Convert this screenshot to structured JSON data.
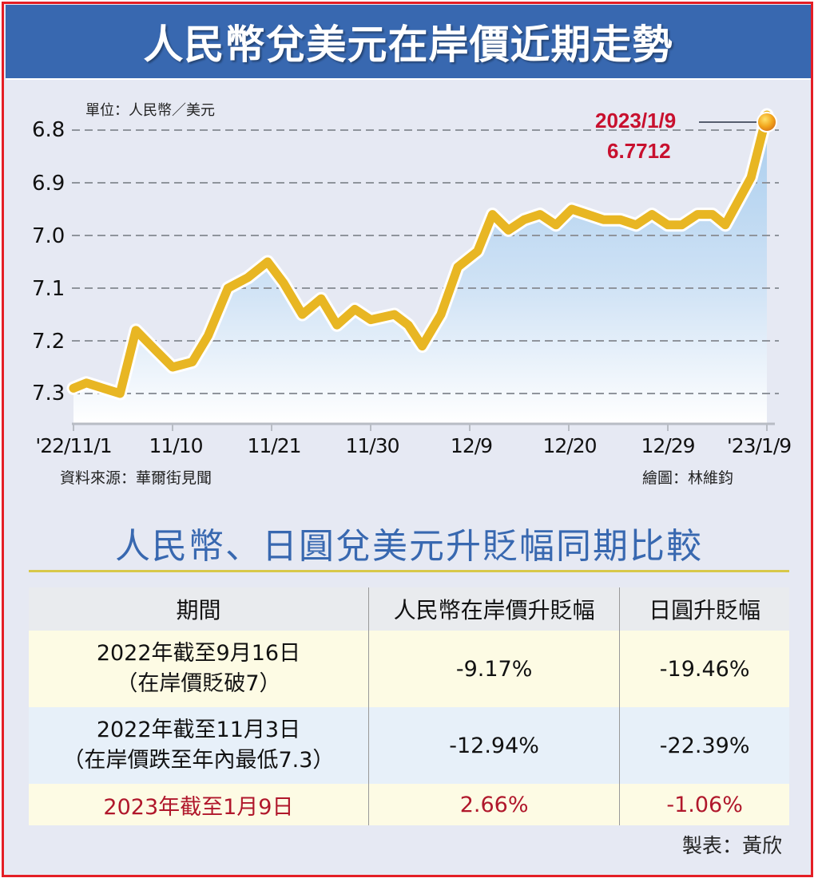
{
  "header": {
    "title": "人民幣兌美元在岸價近期走勢"
  },
  "chart_data": {
    "type": "line",
    "title": "人民幣兌美元在岸價近期走勢",
    "unit_label": "單位：人民幣／美元",
    "xlabel": "",
    "ylabel": "人民幣／美元",
    "y_inverted": true,
    "ylim": [
      7.3,
      6.8
    ],
    "y_ticks": [
      "6.8",
      "6.9",
      "7.0",
      "7.1",
      "7.2",
      "7.3"
    ],
    "x_tick_labels": [
      "'22/11/1",
      "11/10",
      "11/21",
      "11/30",
      "12/9",
      "12/20",
      "12/29",
      "'23/1/9"
    ],
    "grid": "horizontal dashed",
    "fill": "area gradient blue",
    "line_color": "#e8b623",
    "x": [
      0,
      0.13,
      0.47,
      0.63,
      0.84,
      1.0,
      1.2,
      1.36,
      1.56,
      1.76,
      1.96,
      2.12,
      2.31,
      2.5,
      2.66,
      2.84,
      3.0,
      3.24,
      3.38,
      3.52,
      3.71,
      3.88,
      4.08,
      4.23,
      4.39,
      4.55,
      4.71,
      4.87,
      5.03,
      5.19,
      5.35,
      5.52,
      5.68,
      5.84,
      6.0,
      6.14,
      6.3,
      6.45,
      6.58,
      6.84,
      7.0
    ],
    "values": [
      7.29,
      7.28,
      7.3,
      7.18,
      7.22,
      7.25,
      7.24,
      7.19,
      7.1,
      7.08,
      7.05,
      7.09,
      7.15,
      7.12,
      7.17,
      7.14,
      7.16,
      7.15,
      7.17,
      7.21,
      7.15,
      7.06,
      7.03,
      6.96,
      6.99,
      6.97,
      6.96,
      6.98,
      6.95,
      6.96,
      6.97,
      6.97,
      6.98,
      6.96,
      6.98,
      6.98,
      6.96,
      6.96,
      6.98,
      6.89,
      6.7712
    ],
    "x_note": "x is tick index position (0 = '22/11/1, 7 = '23/1/9), approximate",
    "annotations": [
      {
        "date": "2023/1/9",
        "value": "6.7712"
      }
    ],
    "source": "資料來源：華爾街見聞",
    "credit": "繪圖：林維鈞"
  },
  "table": {
    "title": "人民幣、日圓兌美元升貶幅同期比較",
    "headers": [
      "期間",
      "人民幣在岸價升貶幅",
      "日圓升貶幅"
    ],
    "rows": [
      {
        "period_line1": "2022年截至9月16日",
        "period_line2": "（在岸價貶破7）",
        "cny": "-9.17%",
        "jpy": "-19.46%"
      },
      {
        "period_line1": "2022年截至11月3日",
        "period_line2": "（在岸價跌至年內最低7.3）",
        "cny": "-12.94%",
        "jpy": "-22.39%"
      },
      {
        "period_line1": "2023年截至1月9日",
        "period_line2": "",
        "cny": "2.66%",
        "jpy": "-1.06%"
      }
    ],
    "credit": "製表：黃欣"
  },
  "colors": {
    "title_bar": "#3868b0",
    "frame_border": "#e41e25",
    "line": "#e8b623",
    "annotation": "#c8102e",
    "highlight_row_text": "#b0172b",
    "subtitle": "#3868b0"
  }
}
